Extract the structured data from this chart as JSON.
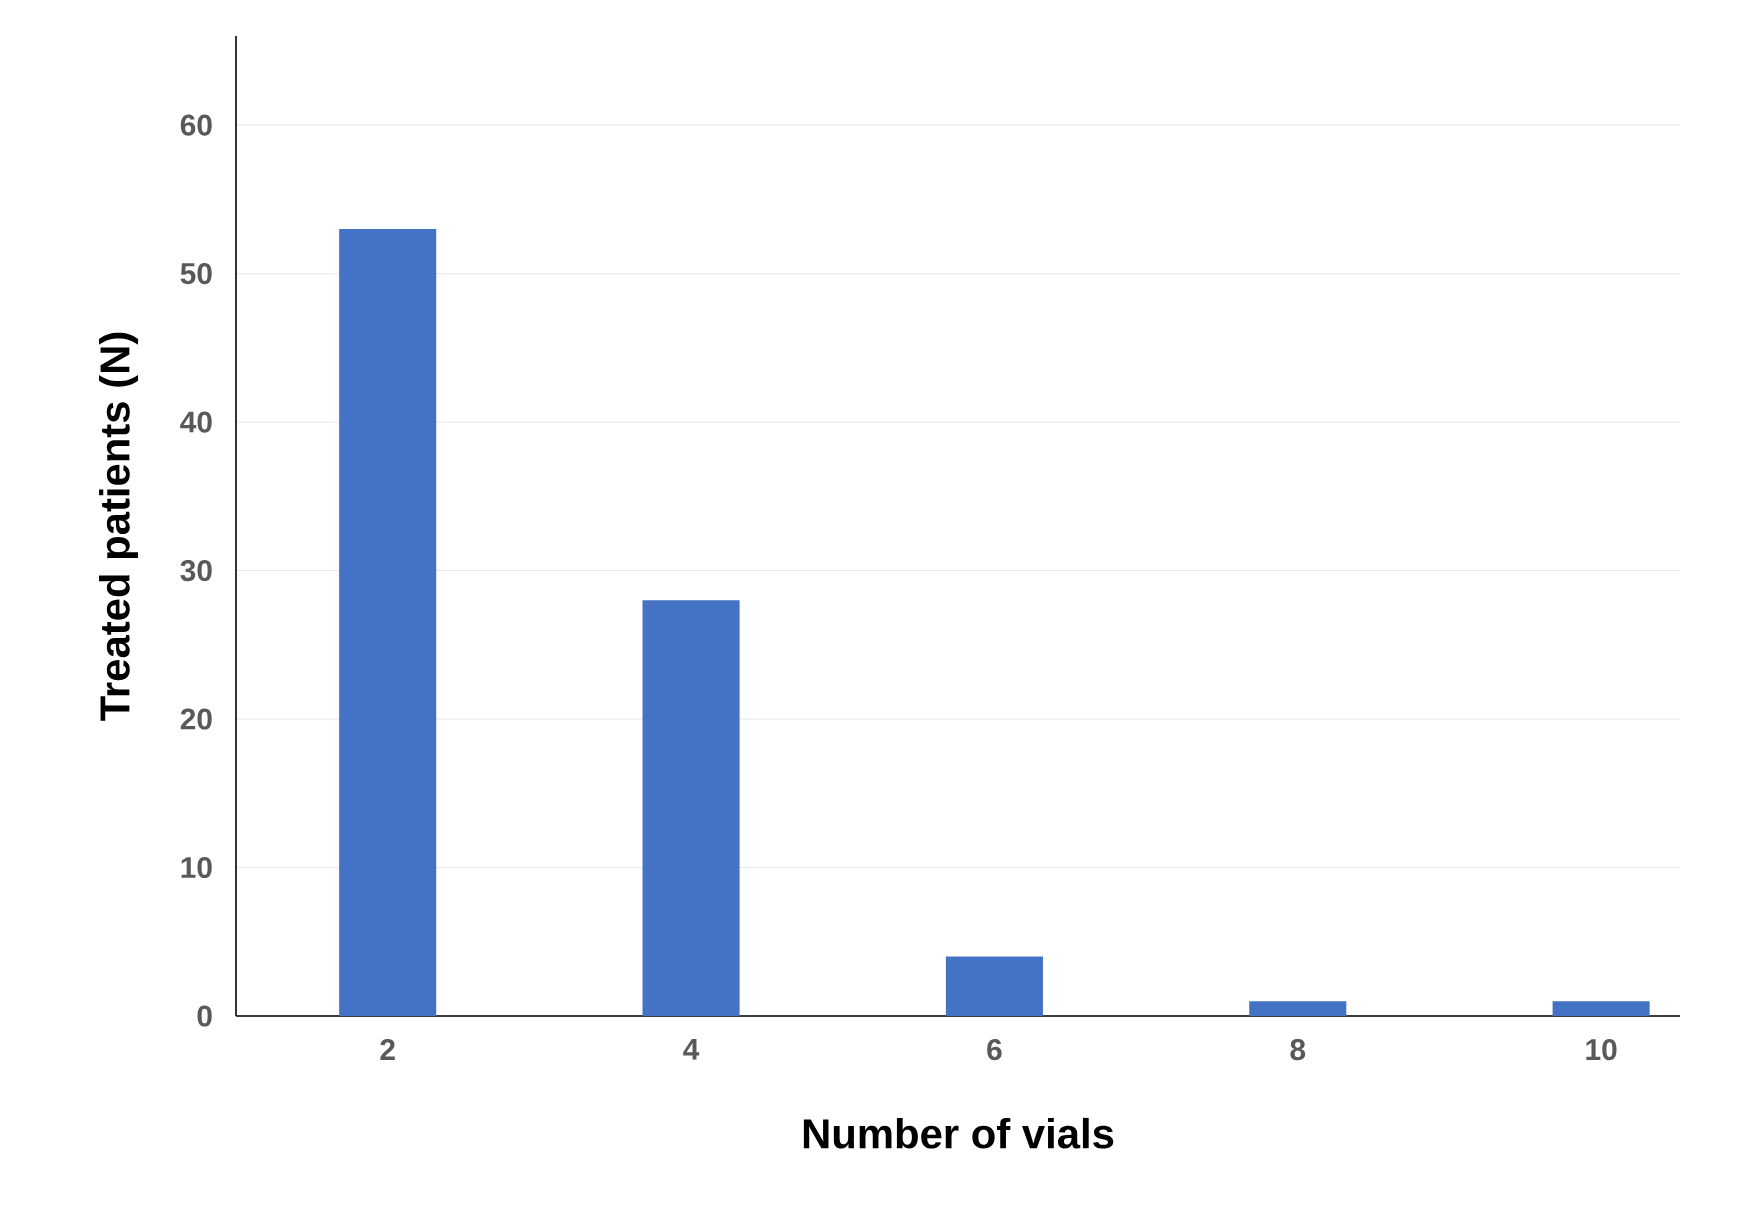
{
  "chart_data": {
    "type": "bar",
    "xlabel": "Number of vials",
    "ylabel": "Treated patients (N)",
    "categories": [
      "2",
      "4",
      "6",
      "8",
      "10"
    ],
    "values": [
      53,
      28,
      4,
      1,
      1
    ],
    "color": "#4472c4",
    "ylim": [
      0,
      66
    ],
    "yticks": [
      0,
      10,
      20,
      30,
      40,
      50,
      60
    ],
    "grid": "y"
  }
}
